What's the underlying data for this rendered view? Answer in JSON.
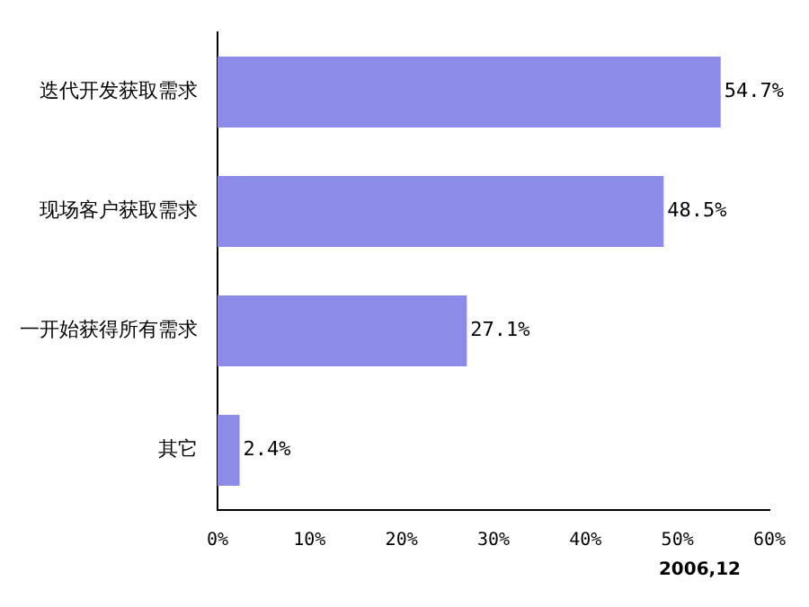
{
  "chart_data": {
    "type": "bar",
    "orientation": "horizontal",
    "categories": [
      "迭代开发获取需求",
      "现场客户获取需求",
      "一开始获得所有需求",
      "其它"
    ],
    "values": [
      54.7,
      48.5,
      27.1,
      2.4
    ],
    "value_labels": [
      "54.7%",
      "48.5%",
      "27.1%",
      "2.4%"
    ],
    "color": "#8c8ce8",
    "xlim": [
      0,
      60
    ],
    "xticks": [
      {
        "value": 0,
        "label": "0%"
      },
      {
        "value": 10,
        "label": "10%"
      },
      {
        "value": 20,
        "label": "20%"
      },
      {
        "value": 30,
        "label": "30%"
      },
      {
        "value": 40,
        "label": "40%"
      },
      {
        "value": 50,
        "label": "50%"
      },
      {
        "value": 60,
        "label": "60%"
      }
    ],
    "grid": false,
    "legend": false,
    "annotations": [
      "2006,12"
    ]
  }
}
